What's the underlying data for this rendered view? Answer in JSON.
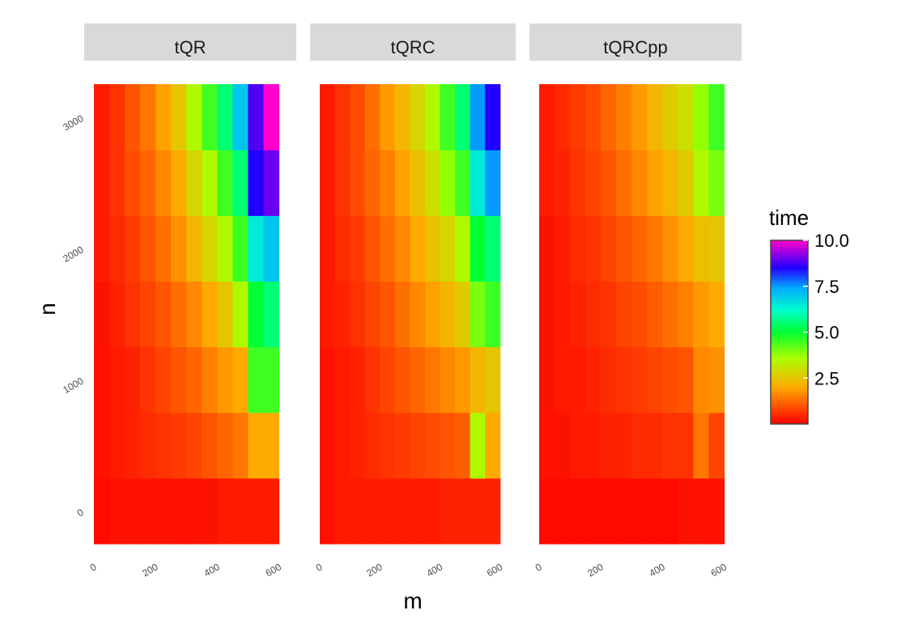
{
  "chart_data": {
    "type": "heatmap",
    "xlabel": "m",
    "ylabel": "n",
    "x": [
      25,
      75,
      125,
      175,
      225,
      275,
      325,
      375,
      425,
      475,
      525,
      575
    ],
    "y": [
      0,
      500,
      1000,
      1500,
      2000,
      2500,
      3000
    ],
    "xlim": [
      0,
      625
    ],
    "ylim": [
      -250,
      3250
    ],
    "x_ticks": [
      "0",
      "200",
      "400",
      "600"
    ],
    "y_ticks": [
      "0",
      "1000",
      "2000",
      "3000"
    ],
    "x_tick_values": [
      0,
      200,
      400,
      600
    ],
    "y_tick_values": [
      0,
      1000,
      2000,
      3000
    ],
    "facets": [
      {
        "title": "tQR",
        "z": [
          [
            0.1,
            0.2,
            0.2,
            0.2,
            0.2,
            0.2,
            0.2,
            0.2,
            0.3,
            0.3,
            0.3,
            0.3
          ],
          [
            0.2,
            0.3,
            0.4,
            0.5,
            0.6,
            0.7,
            0.8,
            1.0,
            1.2,
            1.4,
            2.0,
            2.0
          ],
          [
            0.2,
            0.3,
            0.4,
            0.6,
            0.8,
            1.0,
            1.2,
            1.5,
            1.8,
            2.0,
            4.5,
            4.5
          ],
          [
            0.2,
            0.4,
            0.6,
            0.8,
            1.0,
            1.3,
            1.6,
            2.0,
            2.5,
            3.5,
            5.0,
            5.5
          ],
          [
            0.3,
            0.5,
            0.7,
            1.0,
            1.3,
            1.7,
            2.2,
            2.8,
            3.5,
            4.5,
            6.5,
            7.0
          ],
          [
            0.3,
            0.6,
            0.9,
            1.2,
            1.6,
            2.0,
            2.8,
            3.5,
            4.5,
            5.5,
            8.5,
            9.0
          ],
          [
            0.3,
            0.6,
            1.0,
            1.4,
            1.9,
            2.5,
            3.5,
            4.5,
            5.5,
            7.0,
            8.8,
            10.0
          ]
        ]
      },
      {
        "title": "tQRC",
        "z": [
          [
            0.2,
            0.3,
            0.3,
            0.3,
            0.3,
            0.3,
            0.3,
            0.3,
            0.4,
            0.4,
            0.4,
            0.4
          ],
          [
            0.2,
            0.3,
            0.4,
            0.5,
            0.6,
            0.7,
            0.8,
            0.9,
            1.0,
            1.1,
            3.5,
            2.0
          ],
          [
            0.2,
            0.3,
            0.4,
            0.6,
            0.8,
            1.0,
            1.2,
            1.4,
            1.6,
            1.8,
            2.2,
            2.5
          ],
          [
            0.3,
            0.4,
            0.6,
            0.8,
            1.0,
            1.3,
            1.6,
            1.9,
            2.2,
            2.6,
            4.0,
            4.5
          ],
          [
            0.3,
            0.5,
            0.7,
            1.0,
            1.3,
            1.6,
            2.0,
            2.4,
            2.8,
            3.5,
            5.0,
            5.5
          ],
          [
            0.3,
            0.6,
            0.9,
            1.2,
            1.5,
            1.9,
            2.4,
            3.0,
            3.8,
            4.5,
            6.5,
            7.5
          ],
          [
            0.3,
            0.6,
            0.9,
            1.3,
            1.8,
            2.2,
            2.8,
            3.5,
            4.5,
            5.5,
            7.5,
            8.5
          ]
        ]
      },
      {
        "title": "tQRCpp",
        "z": [
          [
            0.1,
            0.1,
            0.1,
            0.1,
            0.1,
            0.1,
            0.1,
            0.1,
            0.1,
            0.2,
            0.2,
            0.2
          ],
          [
            0.2,
            0.2,
            0.3,
            0.3,
            0.4,
            0.4,
            0.5,
            0.5,
            0.6,
            0.6,
            1.4,
            0.8
          ],
          [
            0.2,
            0.3,
            0.3,
            0.4,
            0.5,
            0.6,
            0.7,
            0.8,
            0.9,
            1.0,
            1.6,
            1.7
          ],
          [
            0.2,
            0.3,
            0.4,
            0.5,
            0.6,
            0.8,
            0.9,
            1.1,
            1.3,
            1.5,
            1.8,
            2.0
          ],
          [
            0.2,
            0.3,
            0.5,
            0.6,
            0.8,
            1.0,
            1.2,
            1.4,
            1.7,
            2.0,
            2.4,
            2.5
          ],
          [
            0.3,
            0.4,
            0.6,
            0.8,
            1.0,
            1.3,
            1.6,
            1.9,
            2.2,
            2.6,
            3.5,
            4.0
          ],
          [
            0.3,
            0.5,
            0.7,
            0.9,
            1.2,
            1.5,
            1.8,
            2.2,
            2.6,
            3.0,
            3.8,
            4.5
          ]
        ]
      }
    ],
    "legend": {
      "title": "time",
      "position": "right",
      "ticks": [
        2.5,
        5.0,
        7.5,
        10.0
      ],
      "tick_labels": [
        "2.5",
        "5.0",
        "7.5",
        "10.0"
      ],
      "range": [
        0,
        10
      ],
      "colorscale": [
        [
          0.0,
          "#ff0000"
        ],
        [
          0.2,
          "#ffaa00"
        ],
        [
          0.36,
          "#aaff00"
        ],
        [
          0.5,
          "#00ff33"
        ],
        [
          0.62,
          "#00ffcc"
        ],
        [
          0.74,
          "#00aaff"
        ],
        [
          0.85,
          "#2200ff"
        ],
        [
          1.0,
          "#ff00cc"
        ]
      ]
    },
    "strip_color": "#d9d9d9",
    "grid": false
  }
}
